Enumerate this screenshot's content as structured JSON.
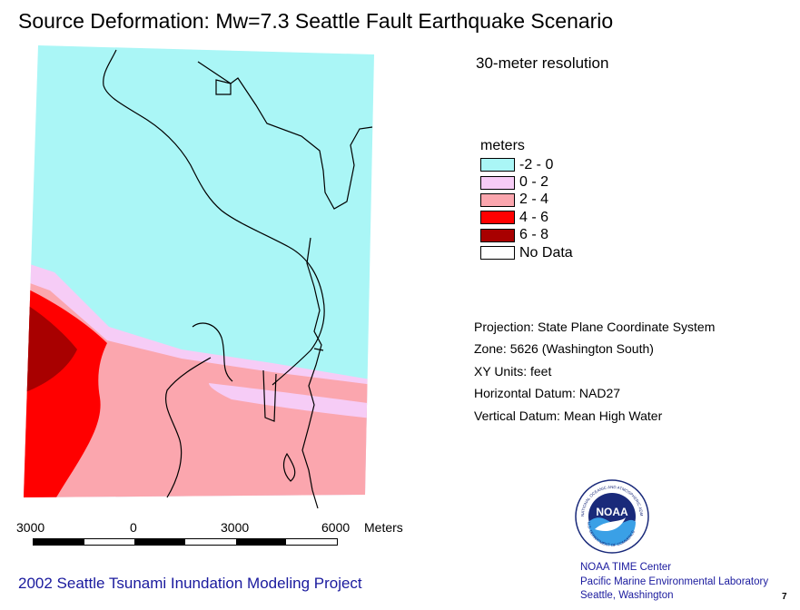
{
  "title": "Source Deformation: Mw=7.3 Seattle Fault Earthquake Scenario",
  "subtitle": "30-meter resolution",
  "legend": {
    "title": "meters",
    "items": [
      {
        "label": "-2 - 0",
        "color": "#aaf6f6"
      },
      {
        "label": "0 - 2",
        "color": "#f6ccf6"
      },
      {
        "label": "2 - 4",
        "color": "#fba6ae"
      },
      {
        "label": "4 - 6",
        "color": "#ff0000"
      },
      {
        "label": "6 - 8",
        "color": "#a80000"
      },
      {
        "label": "No Data",
        "color": "#ffffff"
      }
    ]
  },
  "metadata": [
    "Projection: State Plane Coordinate System",
    "Zone: 5626 (Washington South)",
    "XY Units: feet",
    "Horizontal Datum: NAD27",
    "Vertical Datum: Mean High Water"
  ],
  "scale": {
    "labels": [
      "3000",
      "0",
      "3000",
      "6000"
    ],
    "unit": "Meters"
  },
  "footer": "2002 Seattle Tsunami Inundation Modeling Project",
  "credit": {
    "line1": "NOAA TIME Center",
    "line2": "Pacific Marine Environmental Laboratory",
    "line3": "Seattle, Washington"
  },
  "page_number": "7",
  "logo": {
    "text": "NOAA",
    "ring_top": "NATIONAL OCEANIC AND ATMOSPHERIC ADMINISTRATION",
    "ring_bottom": "U.S. DEPARTMENT OF COMMERCE"
  }
}
